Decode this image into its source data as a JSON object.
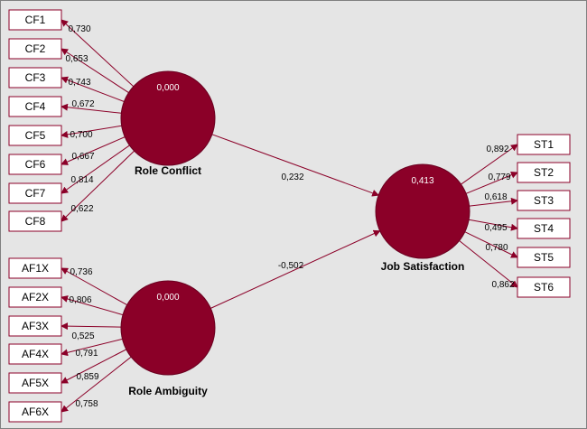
{
  "theme": {
    "construct_color": "#8b0028",
    "arrow_color": "#8b0028",
    "background": "#e5e5e5",
    "indicator_fill": "#ffffff"
  },
  "constructs": {
    "role_conflict": {
      "label": "Role Conflict",
      "r2": "0,000"
    },
    "role_ambiguity": {
      "label": "Role Ambiguity",
      "r2": "0,000"
    },
    "job_satisfaction": {
      "label": "Job Satisfaction",
      "r2": "0,413"
    }
  },
  "indicators": {
    "role_conflict": [
      {
        "name": "CF1",
        "loading": "0,730"
      },
      {
        "name": "CF2",
        "loading": "0,653"
      },
      {
        "name": "CF3",
        "loading": "0,743"
      },
      {
        "name": "CF4",
        "loading": "0,672"
      },
      {
        "name": "CF5",
        "loading": "0,700"
      },
      {
        "name": "CF6",
        "loading": "0,667"
      },
      {
        "name": "CF7",
        "loading": "0,814"
      },
      {
        "name": "CF8",
        "loading": "0,622"
      }
    ],
    "role_ambiguity": [
      {
        "name": "AF1X",
        "loading": "0,736"
      },
      {
        "name": "AF2X",
        "loading": "0,806"
      },
      {
        "name": "AF3X",
        "loading": "0,525"
      },
      {
        "name": "AF4X",
        "loading": "0,791"
      },
      {
        "name": "AF5X",
        "loading": "0,859"
      },
      {
        "name": "AF6X",
        "loading": "0,758"
      }
    ],
    "job_satisfaction": [
      {
        "name": "ST1",
        "loading": "0,892"
      },
      {
        "name": "ST2",
        "loading": "0,779"
      },
      {
        "name": "ST3",
        "loading": "0,618"
      },
      {
        "name": "ST4",
        "loading": "0,495"
      },
      {
        "name": "ST5",
        "loading": "0,780"
      },
      {
        "name": "ST6",
        "loading": "0,862"
      }
    ]
  },
  "paths": {
    "role_conflict_to_job_satisfaction": "0,232",
    "role_ambiguity_to_job_satisfaction": "-0,502"
  }
}
